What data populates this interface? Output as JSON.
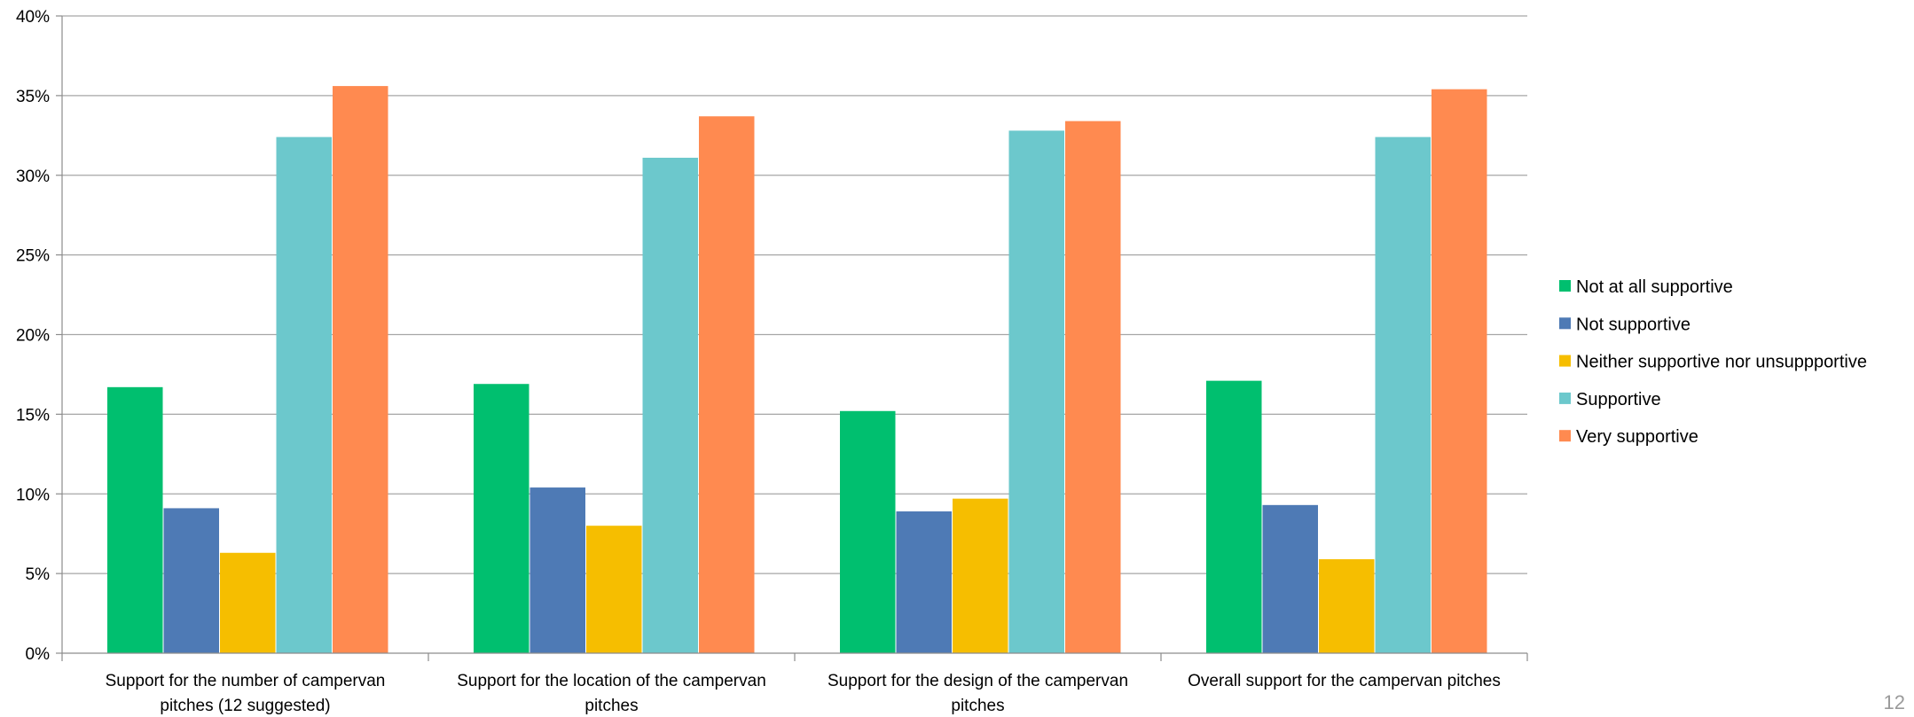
{
  "page_number": "12",
  "chart_data": {
    "type": "bar",
    "title": "",
    "xlabel": "",
    "ylabel": "",
    "ylim": [
      0,
      40
    ],
    "yticks": [
      "0%",
      "5%",
      "10%",
      "15%",
      "20%",
      "25%",
      "30%",
      "35%",
      "40%"
    ],
    "grid": true,
    "legend_position": "right",
    "categories": [
      [
        "Support for the number of campervan",
        "pitches (12 suggested)"
      ],
      [
        "Support for the location of the campervan",
        "pitches"
      ],
      [
        "Support for the design of the campervan",
        "pitches"
      ],
      [
        "Overall support for the campervan pitches"
      ]
    ],
    "series": [
      {
        "name": "Not at all supportive",
        "color": "#00BF6F",
        "values": [
          16.7,
          16.9,
          15.2,
          17.1
        ]
      },
      {
        "name": "Not supportive",
        "color": "#4E7AB5",
        "values": [
          9.1,
          10.4,
          8.9,
          9.3
        ]
      },
      {
        "name": "Neither supportive nor unsuppportive",
        "color": "#F6BE00",
        "values": [
          6.3,
          8.0,
          9.7,
          5.9
        ]
      },
      {
        "name": "Supportive",
        "color": "#6CC8CC",
        "values": [
          32.4,
          31.1,
          32.8,
          32.4
        ]
      },
      {
        "name": "Very supportive",
        "color": "#FF8A50",
        "values": [
          35.6,
          33.7,
          33.4,
          35.4
        ]
      }
    ]
  }
}
